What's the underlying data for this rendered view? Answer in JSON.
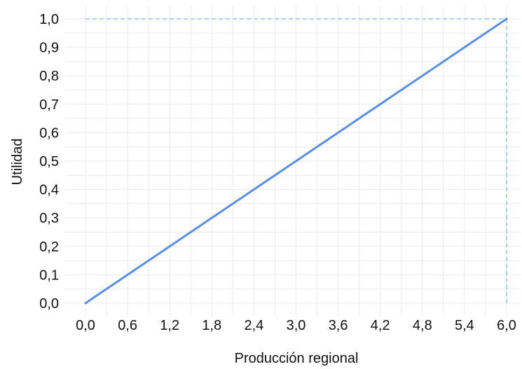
{
  "chart_data": {
    "type": "line",
    "xlabel": "Producción regional",
    "ylabel": "Utilidad",
    "xlim": [
      0,
      6
    ],
    "ylim": [
      0,
      1
    ],
    "x_ticks": [
      "0,0",
      "0,6",
      "1,2",
      "1,8",
      "2,4",
      "3,0",
      "3,6",
      "4,2",
      "4,8",
      "5,4",
      "6,0"
    ],
    "y_ticks": [
      "0,0",
      "0,1",
      "0,2",
      "0,3",
      "0,4",
      "0,5",
      "0,6",
      "0,7",
      "0,8",
      "0,9",
      "1,0"
    ],
    "series": [
      {
        "x": [
          0,
          6
        ],
        "y": [
          0,
          1
        ],
        "color": "#5b8fe3"
      }
    ],
    "reference_lines": [
      {
        "orientation": "horizontal",
        "y": 1.0,
        "x_from": 0,
        "x_to": 6,
        "style": "dashed",
        "color": "#8ec9e6"
      },
      {
        "orientation": "vertical",
        "x": 6.0,
        "y_from": 0,
        "y_to": 1,
        "style": "dashed",
        "color": "#8ec9e6"
      }
    ],
    "grid": true,
    "grid_color": "#ebebeb",
    "legend": "none"
  }
}
